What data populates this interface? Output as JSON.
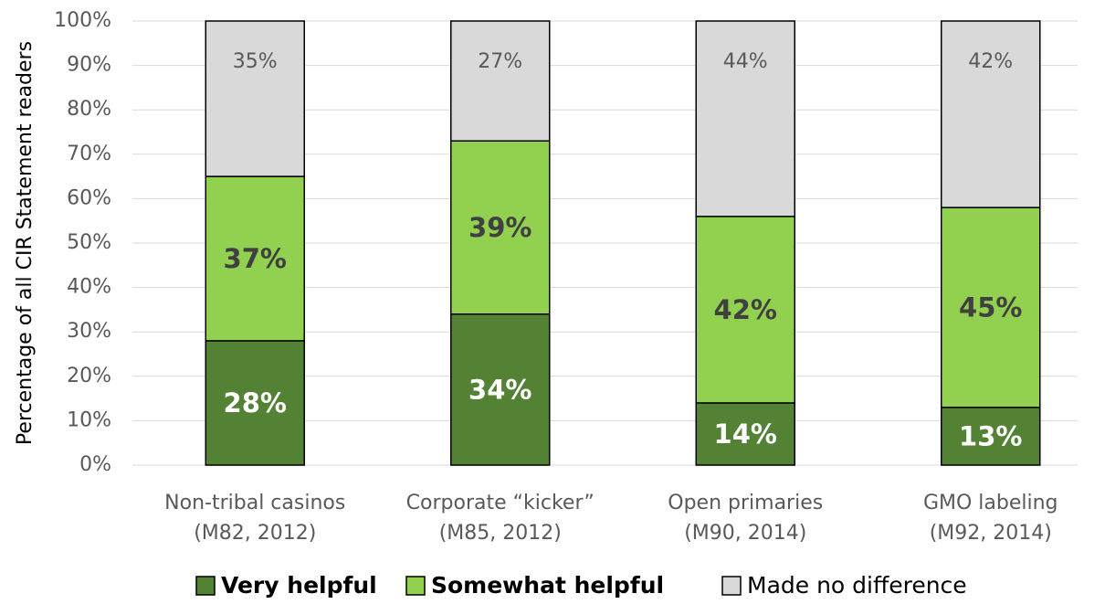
{
  "chart_data": {
    "type": "stacked_bar",
    "y_label": "Percentage of all CIR Statement readers",
    "categories": [
      [
        "Non-tribal casinos",
        "(M82, 2012)"
      ],
      [
        "Corporate “kicker”",
        "(M85, 2012)"
      ],
      [
        "Open primaries",
        "(M90, 2014)"
      ],
      [
        "GMO labeling",
        "(M92, 2014)"
      ]
    ],
    "series": [
      {
        "name": "Very helpful",
        "color": "#548235",
        "values": [
          28,
          34,
          14,
          13
        ],
        "value_labels": [
          "28%",
          "34%",
          "14%",
          "13%"
        ]
      },
      {
        "name": "Somewhat helpful",
        "color": "#92d050",
        "values": [
          37,
          39,
          42,
          45
        ],
        "value_labels": [
          "37%",
          "39%",
          "42%",
          "45%"
        ]
      },
      {
        "name": "Made no difference",
        "color": "#d9d9d9",
        "values": [
          35,
          27,
          44,
          42
        ],
        "value_labels": [
          "35%",
          "27%",
          "44%",
          "42%"
        ]
      }
    ],
    "ylim": [
      0,
      100
    ],
    "yticks": [
      {
        "value": 0,
        "label": "0%"
      },
      {
        "value": 10,
        "label": "10%"
      },
      {
        "value": 20,
        "label": "20%"
      },
      {
        "value": 30,
        "label": "30%"
      },
      {
        "value": 40,
        "label": "40%"
      },
      {
        "value": 50,
        "label": "50%"
      },
      {
        "value": 60,
        "label": "60%"
      },
      {
        "value": 70,
        "label": "70%"
      },
      {
        "value": 80,
        "label": "80%"
      },
      {
        "value": 90,
        "label": "90%"
      },
      {
        "value": 100,
        "label": "100%"
      }
    ],
    "grid": true,
    "legend": "bottom"
  }
}
